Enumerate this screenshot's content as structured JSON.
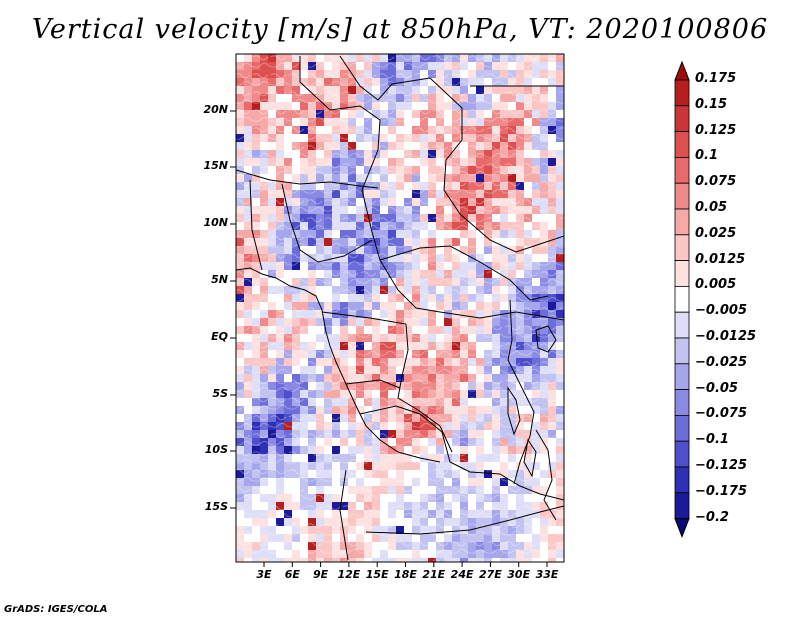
{
  "title": "Vertical velocity [m/s] at 850hPa, VT: 2020100806",
  "map": {
    "y_ticks": [
      "20N",
      "15N",
      "10N",
      "5N",
      "EQ",
      "5S",
      "10S",
      "15S"
    ],
    "x_ticks": [
      "3E",
      "6E",
      "9E",
      "12E",
      "15E",
      "18E",
      "21E",
      "24E",
      "27E",
      "30E",
      "33E"
    ]
  },
  "colorbar": {
    "levels": [
      "0.175",
      "0.15",
      "0.125",
      "0.1",
      "0.075",
      "0.05",
      "0.025",
      "0.0125",
      "0.005",
      "−0.005",
      "−0.0125",
      "−0.025",
      "−0.05",
      "−0.075",
      "−0.1",
      "−0.125",
      "−0.175",
      "−0.2"
    ],
    "colors": [
      "#a00c0c",
      "#b71f1f",
      "#cc3535",
      "#dd5050",
      "#e86a6a",
      "#f08a8a",
      "#f6a9a9",
      "#fac6c6",
      "#fde1e1",
      "#ffffff",
      "#dedef8",
      "#c3c3f2",
      "#a6a6ec",
      "#8a8ae4",
      "#6c6cda",
      "#4f4fcc",
      "#3030b6",
      "#1a1a9a",
      "#0a0a7a"
    ]
  },
  "credit": "GrADS: IGES/COLA"
}
